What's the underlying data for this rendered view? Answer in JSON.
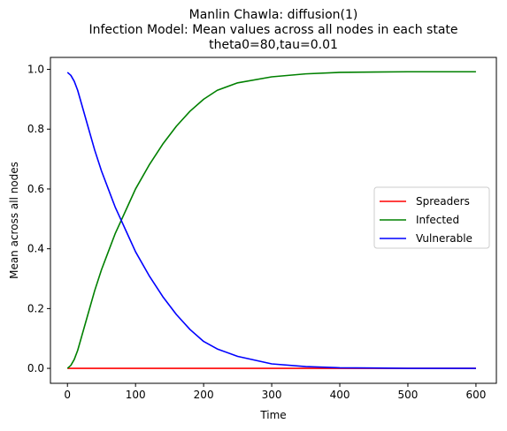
{
  "chart_data": {
    "type": "line",
    "title_lines": [
      "Manlin Chawla: diffusion(1)",
      "Infection Model: Mean values across all nodes in each state",
      "theta0=80,tau=0.01"
    ],
    "xlabel": "Time",
    "ylabel": "Mean across all nodes",
    "xlim": [
      -25,
      630
    ],
    "ylim": [
      -0.05,
      1.04
    ],
    "xticks": [
      0,
      100,
      200,
      300,
      400,
      500,
      600
    ],
    "yticks": [
      0.0,
      0.2,
      0.4,
      0.6,
      0.8,
      1.0
    ],
    "xtick_labels": [
      "0",
      "100",
      "200",
      "300",
      "400",
      "500",
      "600"
    ],
    "ytick_labels": [
      "0.0",
      "0.2",
      "0.4",
      "0.6",
      "0.8",
      "1.0"
    ],
    "grid": false,
    "legend_position": "center-right",
    "series": [
      {
        "name": "Spreaders",
        "color": "#ff0000",
        "x": [
          0,
          50,
          100,
          150,
          200,
          250,
          300,
          350,
          400,
          450,
          500,
          550,
          600
        ],
        "y": [
          0.0,
          0.0,
          0.0,
          0.0,
          0.0,
          0.0,
          0.0,
          0.0,
          0.0,
          0.0,
          0.0,
          0.0,
          0.0
        ]
      },
      {
        "name": "Infected",
        "color": "#008000",
        "x": [
          0,
          5,
          10,
          15,
          20,
          30,
          40,
          50,
          60,
          70,
          80,
          90,
          100,
          120,
          140,
          160,
          180,
          200,
          220,
          250,
          300,
          350,
          400,
          450,
          500,
          550,
          600
        ],
        "y": [
          0.0,
          0.01,
          0.03,
          0.06,
          0.1,
          0.18,
          0.26,
          0.33,
          0.39,
          0.45,
          0.5,
          0.55,
          0.6,
          0.68,
          0.75,
          0.81,
          0.86,
          0.9,
          0.93,
          0.955,
          0.975,
          0.985,
          0.99,
          0.991,
          0.992,
          0.992,
          0.992
        ]
      },
      {
        "name": "Vulnerable",
        "color": "#0000ff",
        "x": [
          0,
          5,
          10,
          15,
          20,
          30,
          40,
          50,
          60,
          70,
          80,
          90,
          100,
          120,
          140,
          160,
          180,
          200,
          220,
          250,
          300,
          350,
          400,
          450,
          500,
          550,
          600
        ],
        "y": [
          0.99,
          0.98,
          0.96,
          0.93,
          0.89,
          0.81,
          0.73,
          0.66,
          0.6,
          0.54,
          0.49,
          0.44,
          0.39,
          0.31,
          0.24,
          0.18,
          0.13,
          0.09,
          0.065,
          0.04,
          0.015,
          0.006,
          0.002,
          0.001,
          0.0,
          0.0,
          0.0
        ]
      }
    ]
  }
}
